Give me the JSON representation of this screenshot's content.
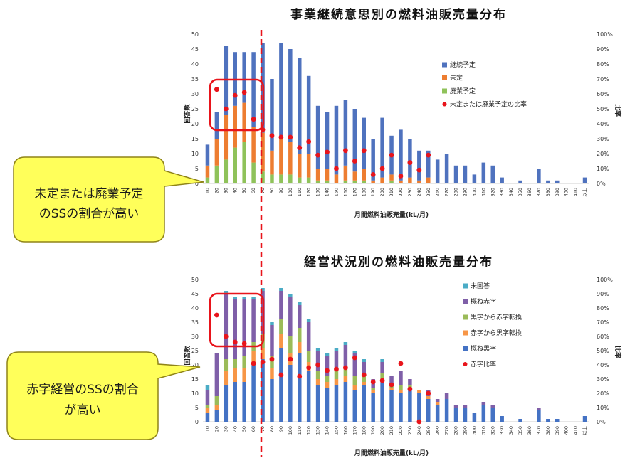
{
  "chart_data": [
    {
      "type": "bar",
      "stacked": true,
      "title": "事業継続意思別の燃料油販売量分布",
      "xlabel": "月間燃料油販売量(kL/月)",
      "ylabel": "回答数",
      "y2label": "比率",
      "ylim": [
        0,
        50
      ],
      "y2lim": [
        0,
        100
      ],
      "yticks": [
        0,
        5,
        10,
        15,
        20,
        25,
        30,
        35,
        40,
        45,
        50
      ],
      "y2ticks": [
        "0%",
        "10%",
        "20%",
        "30%",
        "40%",
        "50%",
        "60%",
        "70%",
        "80%",
        "90%",
        "100%"
      ],
      "grid": false,
      "legend_position": "right",
      "categories": [
        "10",
        "20",
        "30",
        "40",
        "50",
        "60",
        "70",
        "80",
        "90",
        "100",
        "110",
        "120",
        "130",
        "140",
        "150",
        "160",
        "170",
        "180",
        "190",
        "200",
        "210",
        "220",
        "230",
        "240",
        "250",
        "260",
        "270",
        "280",
        "290",
        "300",
        "310",
        "320",
        "330",
        "340",
        "350",
        "360",
        "370",
        "380",
        "390",
        "400",
        "410",
        "以上"
      ],
      "series": [
        {
          "name": "継続予定",
          "color": "#4F72BE",
          "values": [
            7,
            9,
            23,
            18,
            17,
            25,
            30,
            24,
            32,
            31,
            32,
            26,
            21,
            19,
            23,
            22,
            21,
            17,
            14,
            20,
            13,
            17,
            13,
            10,
            9,
            8,
            10,
            6,
            6,
            3,
            7,
            6,
            2,
            0,
            1,
            0,
            5,
            1,
            1,
            0,
            0,
            2
          ]
        },
        {
          "name": "未定",
          "color": "#ED7D31",
          "values": [
            4,
            9,
            15,
            14,
            13,
            12,
            13,
            8,
            12,
            11,
            8,
            8,
            4,
            4,
            3,
            5,
            3,
            4,
            1,
            2,
            2,
            1,
            2,
            1,
            2,
            0,
            0,
            0,
            0,
            0,
            0,
            0,
            0,
            0,
            0,
            0,
            0,
            0,
            0,
            0,
            0,
            0
          ]
        },
        {
          "name": "廃業予定",
          "color": "#8FC25A",
          "values": [
            2,
            6,
            8,
            12,
            14,
            7,
            4,
            3,
            3,
            3,
            2,
            2,
            1,
            1,
            0,
            1,
            1,
            1,
            0,
            0,
            1,
            0,
            0,
            0,
            0,
            0,
            0,
            0,
            0,
            0,
            0,
            0,
            0,
            0,
            0,
            0,
            0,
            0,
            0,
            0,
            0,
            0
          ]
        }
      ],
      "ratio_series": {
        "type": "scatter",
        "axis": "right",
        "name": "未定または廃業予定の比率",
        "color": "#E8141B",
        "values": [
          null,
          63,
          50,
          59,
          61,
          43,
          36,
          32,
          31,
          31,
          24,
          28,
          19,
          21,
          10,
          22,
          15,
          22,
          6,
          10,
          19,
          5,
          14,
          9,
          19,
          null,
          null,
          null,
          null,
          null,
          null,
          null,
          null,
          null,
          null,
          null,
          null,
          null,
          null,
          null,
          null,
          null
        ]
      }
    },
    {
      "type": "bar",
      "stacked": true,
      "title": "経営状況別の燃料油販売量分布",
      "xlabel": "月間燃料油販売量(kL/月)",
      "ylabel": "回答数",
      "y2label": "比率",
      "ylim": [
        0,
        50
      ],
      "y2lim": [
        0,
        100
      ],
      "yticks": [
        0,
        5,
        10,
        15,
        20,
        25,
        30,
        35,
        40,
        45,
        50
      ],
      "y2ticks": [
        "0%",
        "10%",
        "20%",
        "30%",
        "40%",
        "50%",
        "60%",
        "70%",
        "80%",
        "90%",
        "100%"
      ],
      "grid": false,
      "legend_position": "right",
      "categories": [
        "10",
        "20",
        "30",
        "40",
        "50",
        "60",
        "70",
        "80",
        "90",
        "100",
        "110",
        "120",
        "130",
        "140",
        "150",
        "160",
        "170",
        "180",
        "190",
        "200",
        "210",
        "220",
        "230",
        "240",
        "250",
        "260",
        "270",
        "280",
        "290",
        "300",
        "310",
        "320",
        "330",
        "340",
        "350",
        "360",
        "370",
        "380",
        "390",
        "400",
        "410",
        "以上"
      ],
      "series": [
        {
          "name": "未回答",
          "color": "#4BACC6",
          "values": [
            2,
            0,
            1,
            1,
            1,
            1,
            1,
            1,
            1,
            1,
            1,
            1,
            1,
            1,
            1,
            1,
            1,
            1,
            0,
            1,
            0,
            0,
            0,
            0,
            0,
            0,
            0,
            0,
            0,
            0,
            0,
            0,
            0,
            0,
            0,
            0,
            0,
            0,
            0,
            0,
            0,
            0
          ]
        },
        {
          "name": "概ね赤字",
          "color": "#7F5FA8",
          "values": [
            5,
            15,
            23,
            21,
            20,
            15,
            15,
            11,
            10,
            14,
            8,
            10,
            7,
            7,
            7,
            8,
            8,
            5,
            3,
            4,
            3,
            5,
            2,
            0,
            2,
            1,
            2,
            1,
            1,
            0,
            1,
            1,
            0,
            0,
            0,
            0,
            1,
            0,
            0,
            0,
            0,
            0
          ]
        },
        {
          "name": "黒字から赤字転換",
          "color": "#9BBB59",
          "values": [
            1,
            3,
            4,
            3,
            4,
            3,
            5,
            4,
            5,
            6,
            5,
            4,
            3,
            2,
            3,
            3,
            3,
            2,
            1,
            2,
            1,
            2,
            1,
            0,
            0,
            0,
            0,
            0,
            0,
            0,
            0,
            0,
            0,
            0,
            0,
            0,
            0,
            0,
            0,
            0,
            0,
            0
          ]
        },
        {
          "name": "赤字から黒字転換",
          "color": "#F79646",
          "values": [
            2,
            2,
            5,
            5,
            5,
            5,
            4,
            4,
            5,
            4,
            4,
            3,
            2,
            2,
            2,
            2,
            2,
            1,
            1,
            1,
            1,
            1,
            1,
            1,
            1,
            1,
            0,
            0,
            0,
            0,
            0,
            0,
            0,
            0,
            0,
            0,
            0,
            0,
            0,
            0,
            0,
            0
          ]
        },
        {
          "name": "概ね黒字",
          "color": "#4472C4",
          "values": [
            3,
            4,
            13,
            14,
            14,
            20,
            22,
            15,
            26,
            20,
            24,
            18,
            13,
            12,
            13,
            14,
            11,
            13,
            10,
            14,
            11,
            10,
            11,
            10,
            8,
            6,
            8,
            5,
            5,
            3,
            6,
            5,
            2,
            0,
            1,
            0,
            4,
            1,
            1,
            0,
            0,
            2
          ]
        }
      ],
      "ratio_series": {
        "type": "scatter",
        "axis": "right",
        "name": "赤字比率",
        "color": "#E8141B",
        "values": [
          null,
          75,
          60,
          56,
          55,
          41,
          42,
          44,
          33,
          44,
          32,
          38,
          40,
          36,
          37,
          38,
          45,
          33,
          28,
          29,
          26,
          41,
          23,
          0,
          20,
          null,
          null,
          null,
          null,
          null,
          null,
          null,
          null,
          null,
          null,
          null,
          null,
          null,
          null,
          null,
          null,
          null
        ]
      }
    }
  ],
  "annotations": {
    "callouts": [
      {
        "lines": [
          "未定または廃業予定",
          "のSSの割合が高い"
        ]
      },
      {
        "lines": [
          "赤字経営のSSの割合",
          "が高い"
        ]
      }
    ],
    "callout_fill": "#FFFF5A",
    "highlight_color": "#E8141B"
  }
}
